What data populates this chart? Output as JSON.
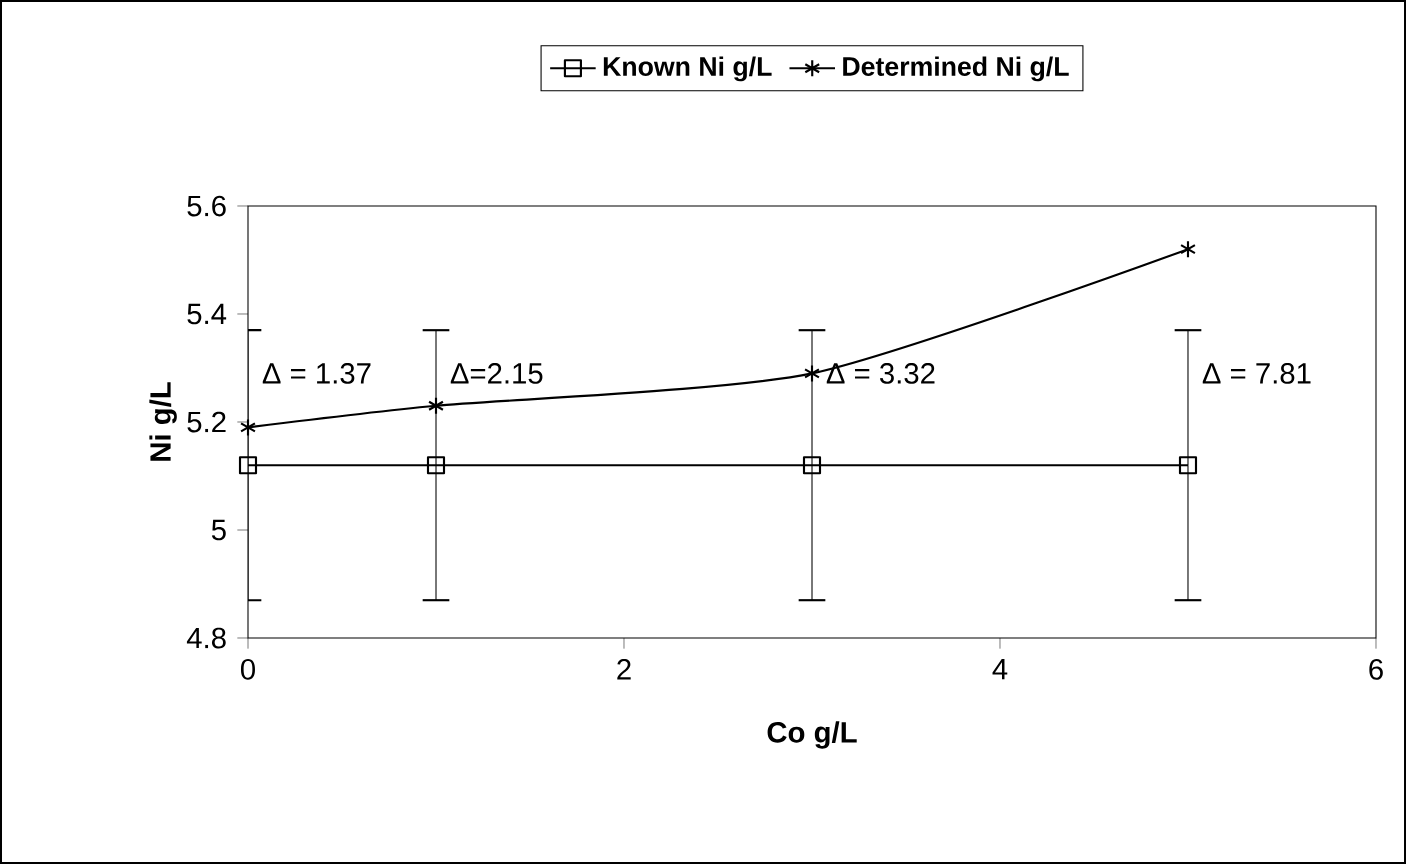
{
  "chart_data": {
    "type": "line",
    "xlabel": "Co g/L",
    "ylabel": "Ni g/L",
    "x": [
      0,
      1,
      3,
      5
    ],
    "series": [
      {
        "name": "Known Ni g/L",
        "color": "#000000",
        "marker": "square",
        "values": [
          5.12,
          5.12,
          5.12,
          5.12
        ],
        "errors": [
          0.25,
          0.25,
          0.25,
          0.25
        ]
      },
      {
        "name": "Determined Ni g/L",
        "color": "#000000",
        "marker": "cross",
        "values": [
          5.19,
          5.23,
          5.29,
          5.52
        ]
      }
    ],
    "xlim": [
      0,
      6
    ],
    "xticks": [
      0,
      2,
      4,
      6
    ],
    "ylim": [
      4.8,
      5.6
    ],
    "yticks": [
      4.8,
      5,
      5.2,
      5.4,
      5.6
    ],
    "legend": "top",
    "annotations": [
      {
        "text": "Δ = 1.37",
        "x": 0,
        "y": 5.29
      },
      {
        "text": "Δ=2.15",
        "x": 1,
        "y": 5.29
      },
      {
        "text": "Δ = 3.32",
        "x": 3,
        "y": 5.29
      },
      {
        "text": "Δ = 7.81",
        "x": 5,
        "y": 5.29
      }
    ]
  }
}
